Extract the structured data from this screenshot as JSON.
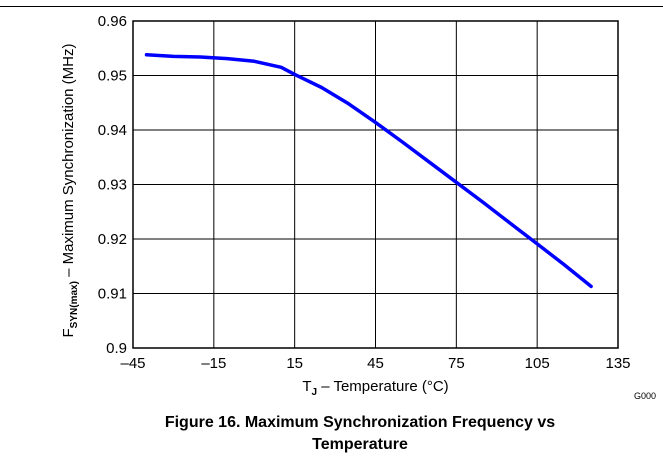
{
  "chart_data": {
    "type": "line",
    "xlabel": "T",
    "xlabel_sub": "J",
    "xlabel_rest": " – Temperature (°C)",
    "ylabel": "F",
    "ylabel_sub": "SYN(max)",
    "ylabel_rest": " – Maximum Synchronization (MHz)",
    "xlim": [
      -45,
      135
    ],
    "ylim": [
      0.9,
      0.96
    ],
    "x_ticks": [
      -45,
      -15,
      15,
      45,
      75,
      105,
      135
    ],
    "x_tick_labels": [
      "–45",
      "–15",
      "15",
      "45",
      "75",
      "105",
      "135"
    ],
    "y_ticks": [
      0.9,
      0.91,
      0.92,
      0.93,
      0.94,
      0.95,
      0.96
    ],
    "y_tick_labels": [
      "0.9",
      "0.91",
      "0.92",
      "0.93",
      "0.94",
      "0.95",
      "0.96"
    ],
    "grid": true,
    "line_color": "#0000ff",
    "series": [
      {
        "x": [
          -40,
          -30,
          -20,
          -10,
          0,
          10,
          15,
          25,
          35,
          45,
          55,
          65,
          75,
          85,
          95,
          105,
          115,
          125
        ],
        "y": [
          0.9538,
          0.9535,
          0.9534,
          0.9531,
          0.9526,
          0.9515,
          0.9502,
          0.9478,
          0.9448,
          0.9414,
          0.9378,
          0.9341,
          0.9304,
          0.9267,
          0.9229,
          0.9191,
          0.9153,
          0.9113
        ]
      }
    ]
  },
  "figure_code": "G000",
  "caption_line1": "Figure 16. Maximum Synchronization Frequency vs",
  "caption_line2": "Temperature"
}
